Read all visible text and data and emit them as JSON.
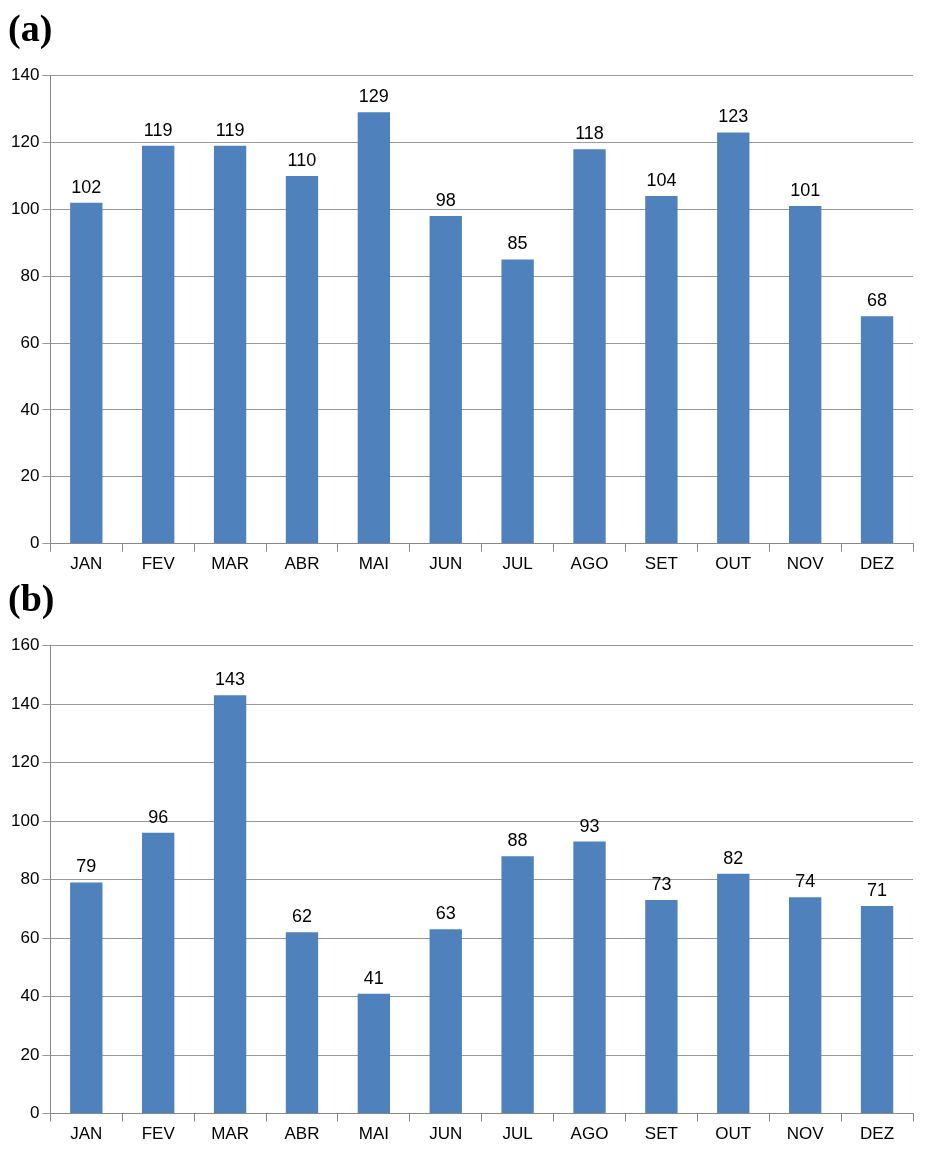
{
  "chart_data": [
    {
      "type": "bar",
      "title": "(a)",
      "categories": [
        "JAN",
        "FEV",
        "MAR",
        "ABR",
        "MAI",
        "JUN",
        "JUL",
        "AGO",
        "SET",
        "OUT",
        "NOV",
        "DEZ"
      ],
      "values": [
        102,
        119,
        119,
        110,
        129,
        98,
        85,
        118,
        104,
        123,
        101,
        68
      ],
      "color": "#4f81bd",
      "ylim": [
        0,
        140
      ],
      "yticks": [
        0,
        20,
        40,
        60,
        80,
        100,
        120,
        140
      ],
      "grid": "y",
      "data_labels": true
    },
    {
      "type": "bar",
      "title": "(b)",
      "categories": [
        "JAN",
        "FEV",
        "MAR",
        "ABR",
        "MAI",
        "JUN",
        "JUL",
        "AGO",
        "SET",
        "OUT",
        "NOV",
        "DEZ"
      ],
      "values": [
        79,
        96,
        143,
        62,
        41,
        63,
        88,
        93,
        73,
        82,
        74,
        71
      ],
      "color": "#4f81bd",
      "ylim": [
        0,
        160
      ],
      "yticks": [
        0,
        20,
        40,
        60,
        80,
        100,
        120,
        140,
        160
      ],
      "grid": "y",
      "data_labels": true
    }
  ]
}
